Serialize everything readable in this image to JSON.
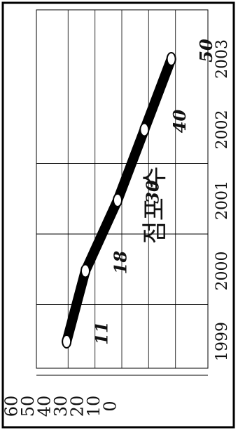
{
  "chart_data": {
    "type": "line",
    "orientation": "rotated-90-clockwise",
    "title": "점포 수",
    "x": [
      "1999",
      "2000",
      "2001",
      "2002",
      "2003"
    ],
    "series": [
      {
        "values": [
          11,
          18,
          30,
          40,
          50
        ]
      }
    ],
    "data_labels": [
      "11",
      "18",
      "30",
      "40",
      "50"
    ],
    "y_ticks": [
      "60",
      "50",
      "40",
      "30",
      "20",
      "10",
      "0"
    ],
    "ylim": [
      0,
      60
    ],
    "grid": true,
    "legend": "none",
    "colors": {
      "line": "#000000",
      "marker_fill": "#ffffff",
      "frame": "#000000",
      "grid": "#000000"
    }
  }
}
